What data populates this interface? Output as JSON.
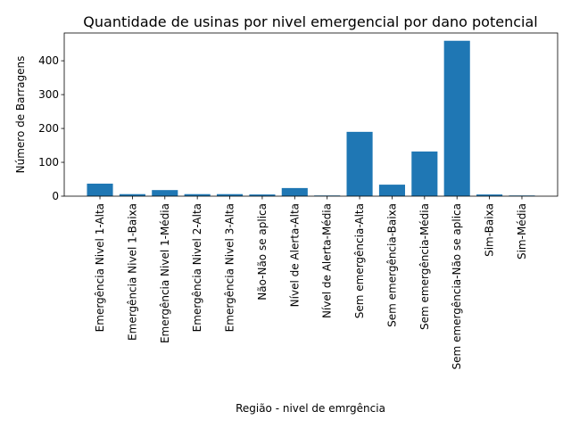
{
  "chart_data": {
    "type": "bar",
    "title": "Quantidade de usinas por nivel emergencial por dano potencial",
    "xlabel": "Região - nivel de emrgência",
    "ylabel": "Número de Barragens",
    "categories": [
      "Emergência Nivel 1-Alta",
      "Emergência Nivel 1-Baixa",
      "Emergência Nivel 1-Média",
      "Emergência Nivel 2-Alta",
      "Emergência Nivel 3-Alta",
      "Não-Não se aplica",
      "Nível de Alerta-Alta",
      "Nível de Alerta-Média",
      "Sem emergência-Alta",
      "Sem emergência-Baixa",
      "Sem emergência-Média",
      "Sem emergência-Não se aplica",
      "Sim-Baixa",
      "Sim-Média"
    ],
    "values": [
      37,
      6,
      18,
      6,
      6,
      5,
      24,
      2,
      190,
      34,
      132,
      459,
      5,
      2
    ],
    "ylim": [
      0,
      482
    ],
    "yticks": [
      0,
      100,
      200,
      300,
      400
    ],
    "grid": false,
    "bar_color": "#1f77b4"
  }
}
